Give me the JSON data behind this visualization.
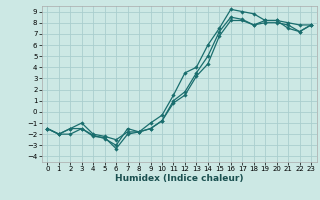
{
  "xlabel": "Humidex (Indice chaleur)",
  "bg_color": "#cce8e4",
  "grid_color": "#aacece",
  "line_color": "#1a6e6e",
  "xlim": [
    -0.5,
    23.5
  ],
  "ylim": [
    -4.5,
    9.5
  ],
  "xticks": [
    0,
    1,
    2,
    3,
    4,
    5,
    6,
    7,
    8,
    9,
    10,
    11,
    12,
    13,
    14,
    15,
    16,
    17,
    18,
    19,
    20,
    21,
    22,
    23
  ],
  "yticks": [
    -4,
    -3,
    -2,
    -1,
    0,
    1,
    2,
    3,
    4,
    5,
    6,
    7,
    8,
    9
  ],
  "line1_x": [
    0,
    1,
    2,
    3,
    4,
    5,
    6,
    7,
    8,
    9,
    10,
    11,
    12,
    13,
    14,
    15,
    16,
    17,
    18,
    19,
    20,
    21,
    22,
    23
  ],
  "line1_y": [
    -1.5,
    -2,
    -1.5,
    -1.5,
    -2.2,
    -2.3,
    -3.3,
    -2,
    -1.8,
    -1,
    -0.3,
    1.5,
    3.5,
    4,
    6,
    7.5,
    9.2,
    9,
    8.8,
    8.2,
    8.2,
    8,
    7.8,
    7.8
  ],
  "line2_x": [
    0,
    1,
    2,
    3,
    4,
    5,
    6,
    7,
    8,
    9,
    10,
    11,
    12,
    13,
    14,
    15,
    16,
    17,
    18,
    19,
    20,
    21,
    22,
    23
  ],
  "line2_y": [
    -1.5,
    -2,
    -1.5,
    -1,
    -2,
    -2.2,
    -2.5,
    -1.8,
    -1.8,
    -1.5,
    -0.8,
    0.8,
    1.5,
    3.2,
    4.3,
    6.8,
    8.2,
    8.2,
    7.8,
    8,
    8,
    7.8,
    7.2,
    7.8
  ],
  "line3_x": [
    0,
    1,
    2,
    3,
    4,
    5,
    6,
    7,
    8,
    9,
    10,
    11,
    12,
    13,
    14,
    15,
    16,
    17,
    18,
    19,
    20,
    21,
    22,
    23
  ],
  "line3_y": [
    -1.5,
    -2,
    -2,
    -1.5,
    -2.1,
    -2.4,
    -3.0,
    -1.5,
    -1.8,
    -1.5,
    -0.8,
    1.0,
    1.8,
    3.5,
    5,
    7.2,
    8.5,
    8.3,
    7.8,
    8.2,
    8.2,
    7.5,
    7.2,
    7.8
  ]
}
